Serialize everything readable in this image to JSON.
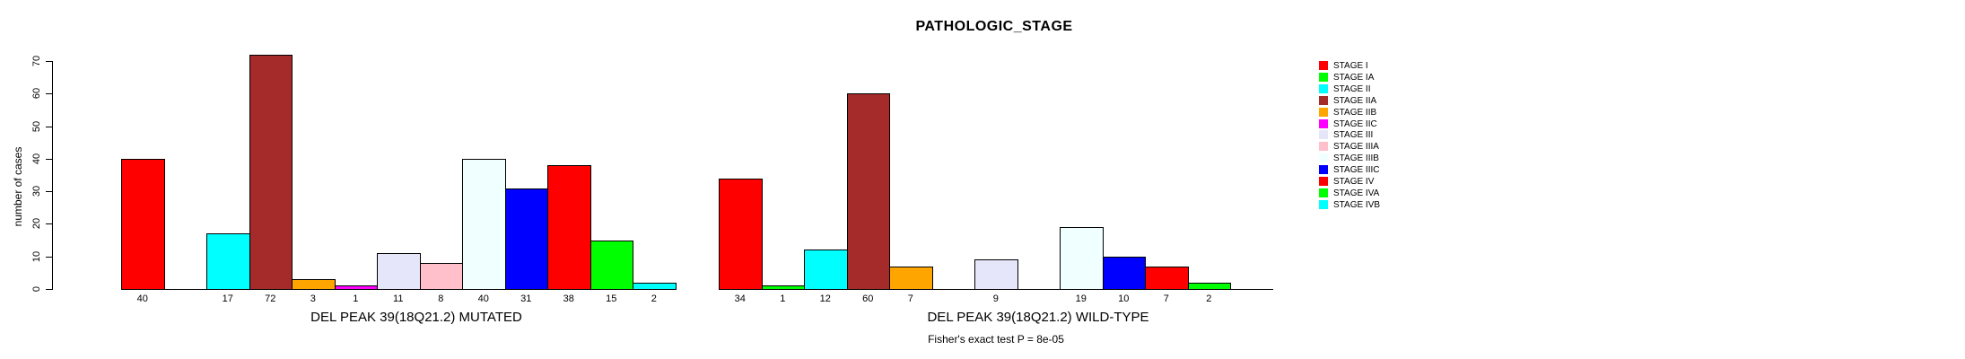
{
  "title": "PATHOLOGIC_STAGE",
  "y_axis": {
    "label": "number of cases",
    "ticks": [
      0,
      10,
      20,
      30,
      40,
      50,
      60,
      70
    ],
    "min": 0,
    "max": 70
  },
  "caption": "Fisher's exact test P = 8e-05",
  "chart_data": {
    "type": "bar",
    "title": "PATHOLOGIC_STAGE",
    "ylabel": "number of cases",
    "ylim": [
      0,
      70
    ],
    "yticks": [
      0,
      10,
      20,
      30,
      40,
      50,
      60,
      70
    ],
    "grid": false,
    "legend_position": "right-outside",
    "categories": [
      "STAGE I",
      "STAGE IA",
      "STAGE II",
      "STAGE IIA",
      "STAGE IIB",
      "STAGE IIC",
      "STAGE III",
      "STAGE IIIA",
      "STAGE IIIB",
      "STAGE IIIC",
      "STAGE IV",
      "STAGE IVA",
      "STAGE IVB"
    ],
    "palette": [
      "#FF0000",
      "#00FF00",
      "#00FFFF",
      "#A52A2A",
      "#FFA500",
      "#FF00FF",
      "#E6E6FA",
      "#FFC0CB",
      "#F0FFFF",
      "#0000FF",
      "#FF0000",
      "#00FF00",
      "#00FFFF"
    ],
    "series": [
      {
        "name": "DEL PEAK 39(18Q21.2) MUTATED",
        "values": [
          40,
          0,
          17,
          72,
          3,
          1,
          11,
          8,
          40,
          31,
          38,
          15,
          2
        ]
      },
      {
        "name": "DEL PEAK 39(18Q21.2) WILD-TYPE",
        "values": [
          34,
          1,
          12,
          60,
          7,
          0,
          9,
          0,
          19,
          10,
          7,
          2,
          0
        ]
      }
    ],
    "value_label_rule": "bar count printed under each bar; omitted when count is 0",
    "annotation": "Fisher's exact test P = 8e-05"
  },
  "legend": {
    "items": [
      {
        "label": "STAGE I",
        "color": "#FF0000"
      },
      {
        "label": "STAGE IA",
        "color": "#00FF00"
      },
      {
        "label": "STAGE II",
        "color": "#00FFFF"
      },
      {
        "label": "STAGE IIA",
        "color": "#A52A2A"
      },
      {
        "label": "STAGE IIB",
        "color": "#FFA500"
      },
      {
        "label": "STAGE IIC",
        "color": "#FF00FF"
      },
      {
        "label": "STAGE III",
        "color": "#E6E6FA"
      },
      {
        "label": "STAGE IIIA",
        "color": "#FFC0CB"
      },
      {
        "label": "STAGE IIIB",
        "color": "#F0FFFF"
      },
      {
        "label": "STAGE IIIC",
        "color": "#0000FF"
      },
      {
        "label": "STAGE IV",
        "color": "#FF0000"
      },
      {
        "label": "STAGE IVA",
        "color": "#00FF00"
      },
      {
        "label": "STAGE IVB",
        "color": "#00FFFF"
      }
    ]
  }
}
